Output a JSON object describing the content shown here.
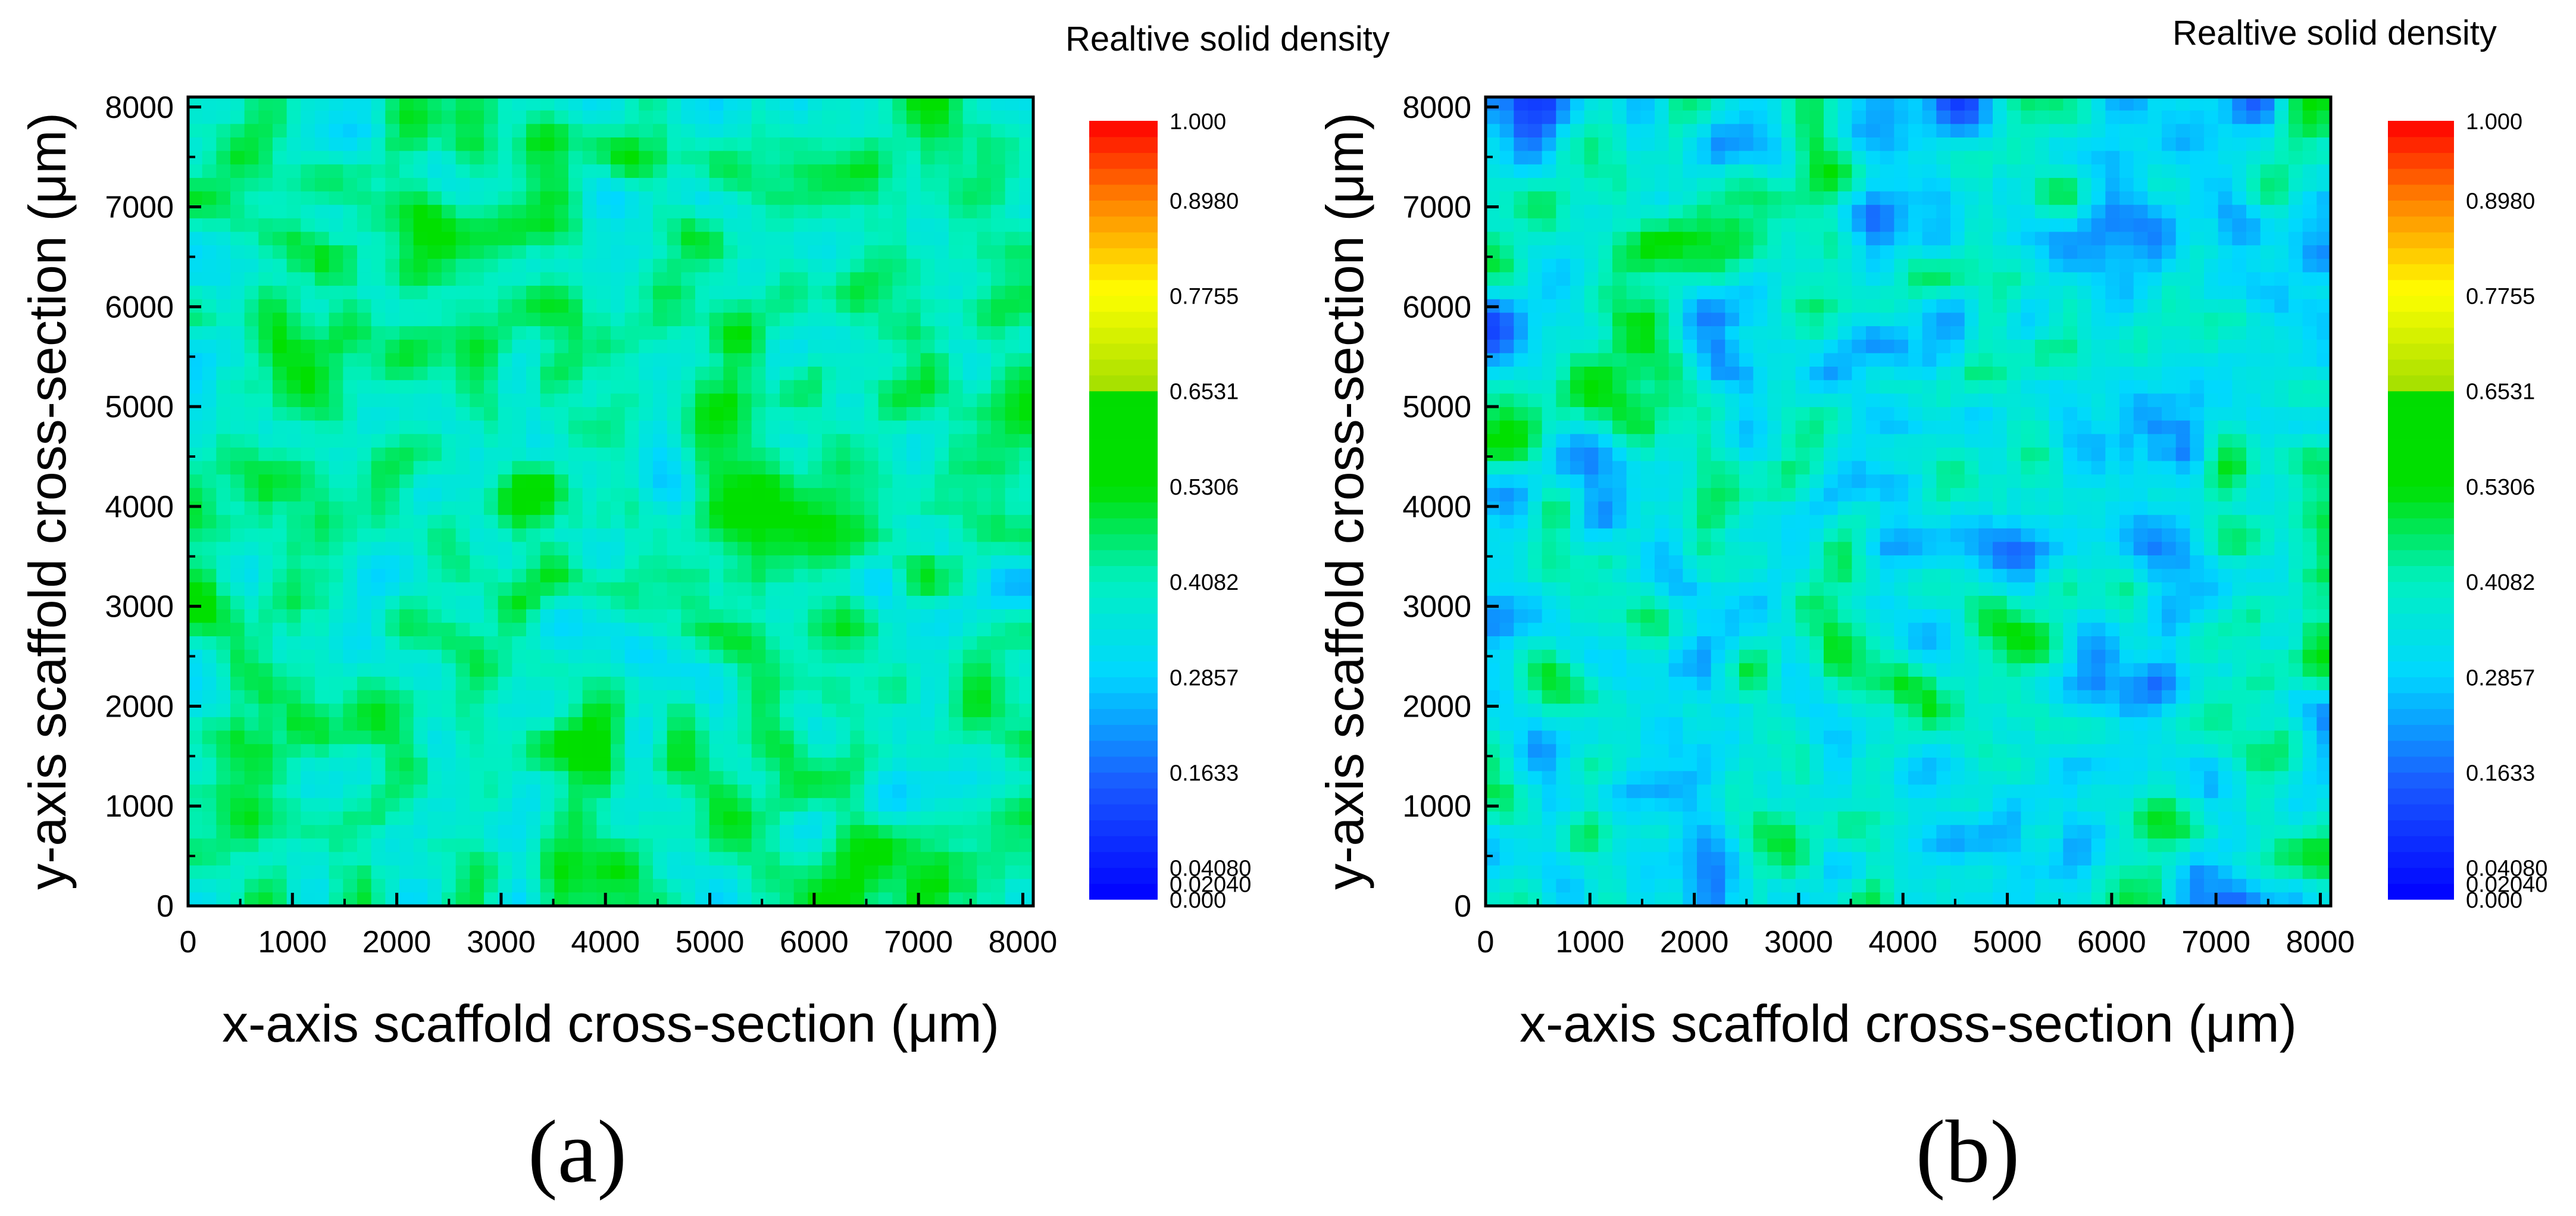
{
  "chart_data": [
    {
      "type": "heatmap",
      "panel_label": "(a)",
      "title": "",
      "xlabel": "x-axis scaffold cross-section (μm)",
      "ylabel": "y-axis scaffold cross-section (μm)",
      "xlim": [
        0,
        8100
      ],
      "ylim": [
        0,
        8100
      ],
      "xticks": [
        0,
        1000,
        2000,
        3000,
        4000,
        5000,
        6000,
        7000,
        8000
      ],
      "yticks": [
        0,
        1000,
        2000,
        3000,
        4000,
        5000,
        6000,
        7000,
        8000
      ],
      "colorbar": {
        "title": "Realtive solid density",
        "min": 0.0,
        "max": 1.0,
        "tick_labels": [
          "1.000",
          "0.8980",
          "0.7755",
          "0.6531",
          "0.5306",
          "0.4082",
          "0.2857",
          "0.1633",
          "0.04080",
          "0.02040",
          "0.000"
        ],
        "tick_values": [
          1.0,
          0.898,
          0.7755,
          0.6531,
          0.5306,
          0.4082,
          0.2857,
          0.1633,
          0.0408,
          0.0204,
          0.0
        ]
      },
      "field_description": "mostly mid density (green/cyan), few low-density regions",
      "dominant_range": [
        0.25,
        0.6
      ],
      "mean_density": 0.45
    },
    {
      "type": "heatmap",
      "panel_label": "(b)",
      "title": "",
      "xlabel": "x-axis scaffold cross-section (μm)",
      "ylabel": "y-axis scaffold cross-section (μm)",
      "xlim": [
        0,
        8100
      ],
      "ylim": [
        0,
        8100
      ],
      "xticks": [
        0,
        1000,
        2000,
        3000,
        4000,
        5000,
        6000,
        7000,
        8000
      ],
      "yticks": [
        0,
        1000,
        2000,
        3000,
        4000,
        5000,
        6000,
        7000,
        8000
      ],
      "colorbar": {
        "title": "Realtive solid density",
        "min": 0.0,
        "max": 1.0,
        "tick_labels": [
          "1.000",
          "0.8980",
          "0.7755",
          "0.6531",
          "0.5306",
          "0.4082",
          "0.2857",
          "0.1633",
          "0.04080",
          "0.02040",
          "0.000"
        ],
        "tick_values": [
          1.0,
          0.898,
          0.7755,
          0.6531,
          0.5306,
          0.4082,
          0.2857,
          0.1633,
          0.0408,
          0.0204,
          0.0
        ]
      },
      "field_description": "mixed density with many low-density (blue) clusters",
      "dominant_range": [
        0.1,
        0.55
      ],
      "mean_density": 0.32
    }
  ]
}
